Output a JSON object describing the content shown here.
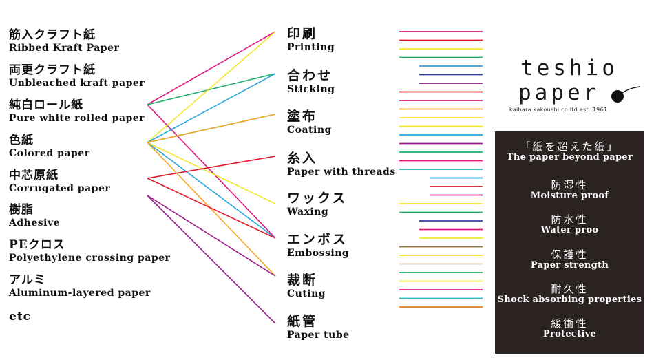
{
  "materials": [
    {
      "jp": "筋入クラフト紙",
      "en": "Ribbed Kraft Paper"
    },
    {
      "jp": "両更クラフト紙",
      "en": "Unbleached kraft paper"
    },
    {
      "jp": "純白ロール紙",
      "en": "Pure white rolled paper"
    },
    {
      "jp": "色紙",
      "en": "Colored paper"
    },
    {
      "jp": "中芯原紙",
      "en": "Corrugated paper"
    },
    {
      "jp": "樹脂",
      "en": "Adhesive"
    },
    {
      "jp": "PEクロス",
      "en": "Polyethylene crossing paper"
    },
    {
      "jp": "アルミ",
      "en": "Aluminum-layered paper"
    },
    {
      "jp": "etc",
      "en": ""
    }
  ],
  "processes": [
    {
      "jp": "印刷",
      "en": "Printing"
    },
    {
      "jp": "合わせ",
      "en": "Sticking"
    },
    {
      "jp": "塗布",
      "en": "Coating"
    },
    {
      "jp": "糸入",
      "en": "Paper with threads"
    },
    {
      "jp": "ワックス",
      "en": "Waxing"
    },
    {
      "jp": "エンボス",
      "en": "Embossing"
    },
    {
      "jp": "裁断",
      "en": "Cuting"
    },
    {
      "jp": "紙管",
      "en": "Paper tube"
    }
  ],
  "connections": [
    {
      "from": 2,
      "to": 0,
      "color": "#e0157f"
    },
    {
      "from": 2,
      "to": 5,
      "color": "#e0157f"
    },
    {
      "from": 2,
      "to": 1,
      "color": "#1fae6e"
    },
    {
      "from": 3,
      "to": 0,
      "color": "#f5e52a"
    },
    {
      "from": 3,
      "to": 1,
      "color": "#2aa6df"
    },
    {
      "from": 3,
      "to": 2,
      "color": "#1fae6e"
    },
    {
      "from": 3,
      "to": 4,
      "color": "#f5e52a"
    },
    {
      "from": 3,
      "to": 5,
      "color": "#2aa6df"
    },
    {
      "from": 3,
      "to": 2,
      "color": "#f5a623"
    },
    {
      "from": 3,
      "to": 6,
      "color": "#f5a623"
    },
    {
      "from": 4,
      "to": 3,
      "color": "#e5162b"
    },
    {
      "from": 4,
      "to": 5,
      "color": "#e5162b"
    },
    {
      "from": 5,
      "to": 6,
      "color": "#9b1a8c"
    },
    {
      "from": 5,
      "to": 7,
      "color": "#9b1a8c"
    }
  ],
  "swatch_lines": [
    {
      "color": "#e0157f",
      "span": "full"
    },
    {
      "color": "#e5162b",
      "span": "full"
    },
    {
      "color": "#f5e52a",
      "span": "full"
    },
    {
      "color": "#1fae6e",
      "span": "full"
    },
    {
      "color": "#2aa6df",
      "span": "short"
    },
    {
      "color": "#3b3f9e",
      "span": "short"
    },
    {
      "color": "#9b1a8c",
      "span": "short"
    },
    {
      "color": "#e5162b",
      "span": "full"
    },
    {
      "color": "#e0157f",
      "span": "full"
    },
    {
      "color": "#f5a623",
      "span": "full"
    },
    {
      "color": "#f5e52a",
      "span": "full"
    },
    {
      "color": "#f5e52a",
      "span": "full"
    },
    {
      "color": "#2aa6df",
      "span": "full"
    },
    {
      "color": "#9b1a8c",
      "span": "full"
    },
    {
      "color": "#1fae6e",
      "span": "full"
    },
    {
      "color": "#e0157f",
      "span": "full"
    },
    {
      "color": "#2ab5b5",
      "span": "full"
    },
    {
      "color": "#2aa6df",
      "span": "mini"
    },
    {
      "color": "#e5162b",
      "span": "mini"
    },
    {
      "color": "#e0157f",
      "span": "mini"
    },
    {
      "color": "#f5e52a",
      "span": "full"
    },
    {
      "color": "#1fae6e",
      "span": "full"
    },
    {
      "color": "#3b3f9e",
      "span": "short"
    },
    {
      "color": "#e0157f",
      "span": "short"
    },
    {
      "color": "#f5e52a",
      "span": "short"
    },
    {
      "color": "#8a6d3b",
      "span": "full"
    },
    {
      "color": "#f5e52a",
      "span": "full"
    },
    {
      "color": "#d9c9a3",
      "span": "full"
    },
    {
      "color": "#1fae6e",
      "span": "full"
    },
    {
      "color": "#f5e52a",
      "span": "full"
    },
    {
      "color": "#e0157f",
      "span": "full"
    },
    {
      "color": "#2ab5b5",
      "span": "full"
    },
    {
      "color": "#e07a1f",
      "span": "full"
    }
  ],
  "logo": {
    "line1": "teshio",
    "line2": "paper",
    "tagline": "kaibara kakoushi co.ltd   est. 1961"
  },
  "features": [
    {
      "jp": "「紙を超えた紙」",
      "en": "The paper beyond paper"
    },
    {
      "jp": "防湿性",
      "en": "Moisture proof"
    },
    {
      "jp": "防水性",
      "en": "Water proo"
    },
    {
      "jp": "保護性",
      "en": "Paper strength"
    },
    {
      "jp": "耐久性",
      "en": "Shock absorbing properties"
    },
    {
      "jp": "緩衝性",
      "en": "Protective"
    }
  ],
  "colors": {
    "panel_bg": "#2b2321",
    "text": "#111111"
  }
}
